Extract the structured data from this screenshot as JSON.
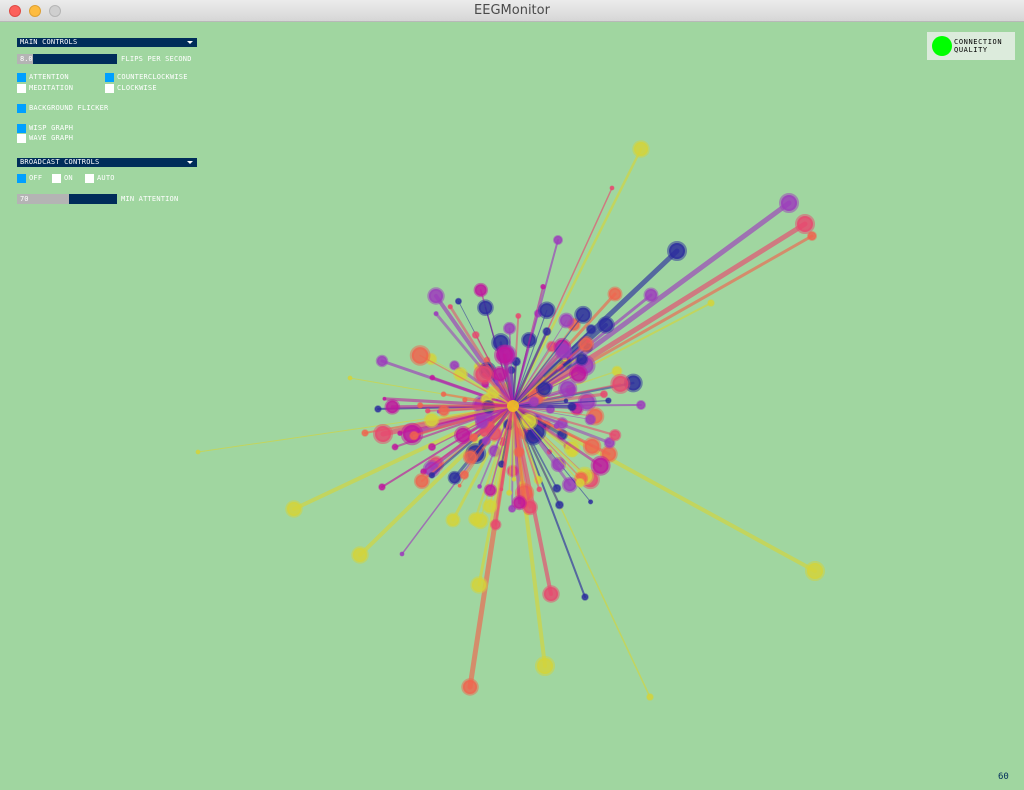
{
  "window": {
    "title": "EEGMonitor"
  },
  "main_controls": {
    "header": "MAIN CONTROLS",
    "flips_slider": {
      "value": "8.0",
      "fraction": 0.16,
      "label": "FLIPS PER SECOND"
    },
    "attention": {
      "label": "ATTENTION",
      "checked": true
    },
    "meditation": {
      "label": "MEDITATION",
      "checked": false
    },
    "counterclockwise": {
      "label": "COUNTERCLOCKWISE",
      "checked": true
    },
    "clockwise": {
      "label": "CLOCKWISE",
      "checked": false
    },
    "background_flicker": {
      "label": "BACKGROUND FLICKER",
      "checked": true
    },
    "wisp_graph": {
      "label": "WISP GRAPH",
      "checked": true
    },
    "wave_graph": {
      "label": "WAVE GRAPH",
      "checked": false
    }
  },
  "broadcast_controls": {
    "header": "BROADCAST CONTROLS",
    "off": {
      "label": "OFF",
      "checked": true
    },
    "on": {
      "label": "ON",
      "checked": false
    },
    "auto": {
      "label": "AUTO",
      "checked": false
    },
    "min_attention_slider": {
      "value": "70",
      "fraction": 0.52,
      "label": "MIN ATTENTION"
    }
  },
  "connection_quality": {
    "line1": "CONNECTION",
    "line2": "QUALITY",
    "color": "#00ff00"
  },
  "footer": {
    "left_text": "",
    "fps": "60"
  },
  "wisp_colors": [
    "#d4d43a",
    "#e8486e",
    "#c0169e",
    "#9c3cbc",
    "#2c2c9e",
    "#f0644e",
    "#3c5c8c"
  ]
}
